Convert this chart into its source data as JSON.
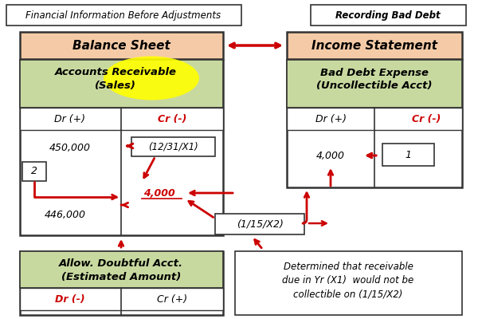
{
  "title_left": "Financial Information Before Adjustments",
  "title_right": "Recording Bad Debt",
  "header_balance": "Balance Sheet",
  "header_income": "Income Statement",
  "ar_title1": "Accounts Receivable",
  "ar_title2": "(Sales)",
  "ar_dr": "Dr (+)",
  "ar_cr": "Cr (-)",
  "ar_val1": "450,000",
  "ar_val2": "(12/31/X1)",
  "ar_val3": "4,000",
  "ar_val4": "446,000",
  "ar_box2": "2",
  "bde_title1": "Bad Debt Expense",
  "bde_title2": "(Uncollectible Acct)",
  "bde_dr": "Dr (+)",
  "bde_cr": "Cr (-)",
  "bde_val1": "4,000",
  "bde_box1": "1",
  "date_label": "(1/15/X2)",
  "allow_title1": "Allow. Doubtful Acct.",
  "allow_title2": "(Estimated Amount)",
  "allow_dr": "Dr (-)",
  "allow_cr": "Cr (+)",
  "note_line1": "Determined that receivable",
  "note_line2": "due in Yr (X1)  would not be",
  "note_line3": "collectible on (1/15/X2)",
  "color_header_bg": "#f5cba7",
  "color_section_bg": "#c8d9a0",
  "color_red": "#cc0000",
  "color_yellow": "#ffff00",
  "color_border": "#333333",
  "bg_color": "#ffffff"
}
